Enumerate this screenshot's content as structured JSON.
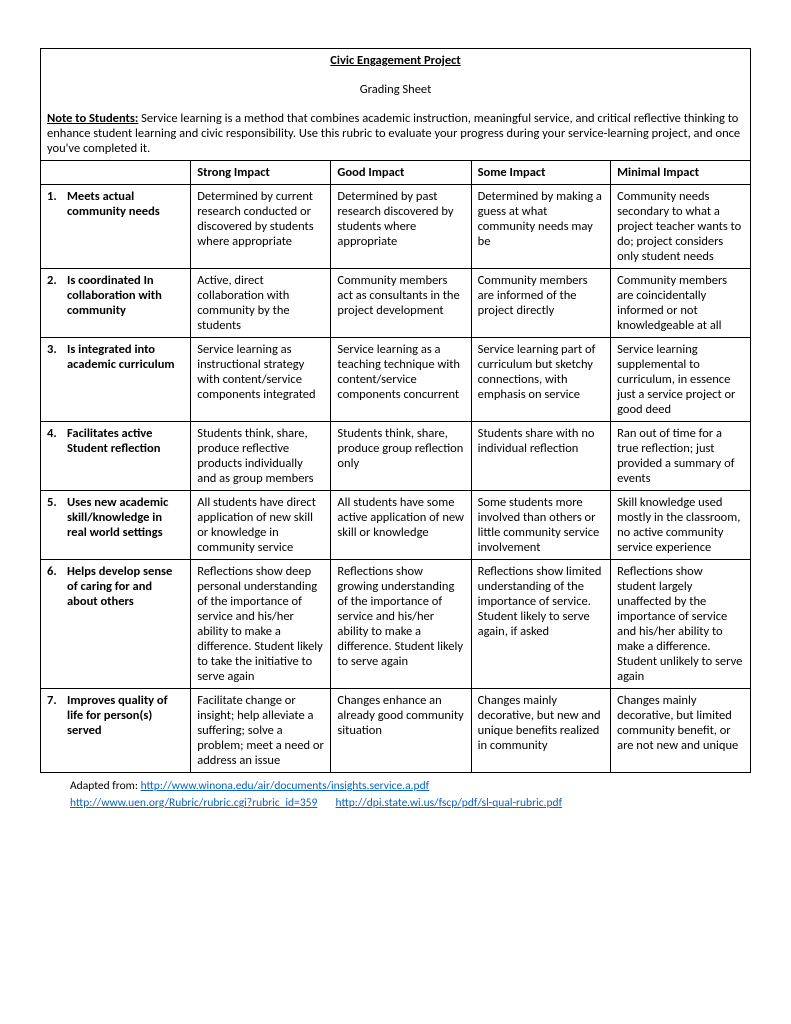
{
  "header": {
    "title": "Civic Engagement Project",
    "subtitle": "Grading Sheet",
    "note_label": "Note to Students:",
    "note_text": "  Service learning is a method that combines academic instruction, meaningful service, and critical reflective thinking to enhance student learning and civic responsibility.  Use this rubric to evaluate your progress during your service-learning project, and once you've completed it."
  },
  "columns": {
    "blank": "",
    "c1": "Strong Impact",
    "c2": "Good Impact",
    "c3": "Some Impact",
    "c4": "Minimal Impact"
  },
  "rows": [
    {
      "num": "1.",
      "crit": "Meets actual community needs",
      "c1": "Determined by current research conducted or discovered by students where appropriate",
      "c2": "Determined by past research discovered by students where appropriate",
      "c3": "Determined by making a guess at what community needs may be",
      "c4": "Community needs secondary to what a project teacher wants to do; project considers only student needs"
    },
    {
      "num": "2.",
      "crit": "Is coordinated In collaboration with community",
      "c1": "Active, direct collaboration with community by the students",
      "c2": "Community members act as consultants in the project development",
      "c3": "Community members are informed of the project directly",
      "c4": "Community members are coincidentally informed or not knowledgeable at all"
    },
    {
      "num": "3.",
      "crit": "Is integrated into academic curriculum",
      "c1": "Service learning as instructional strategy with content/service components integrated",
      "c2": "Service learning as a teaching technique with content/service components concurrent",
      "c3": "Service learning part of curriculum but sketchy connections, with emphasis on service",
      "c4": "Service learning supplemental to curriculum, in essence just a service project or good deed"
    },
    {
      "num": "4.",
      "crit": "Facilitates active Student reflection",
      "c1": "Students think, share, produce reflective products individually and as group members",
      "c2": "Students think, share, produce group reflection only",
      "c3": "Students share with no individual reflection",
      "c4": "Ran out of time for a true reflection; just provided a summary of events"
    },
    {
      "num": "5.",
      "crit": "Uses new academic skill/knowledge in real world settings",
      "c1": "All students have direct application of new skill or knowledge in community service",
      "c2": "All students have some active application of new skill or knowledge",
      "c3": "Some students more involved than others or little community service involvement",
      "c4": "Skill knowledge used mostly in the classroom, no active community service experience"
    },
    {
      "num": "6.",
      "crit": "Helps develop sense of caring for and about others",
      "c1": "Reflections show deep personal understanding of the importance of service and his/her ability to make a difference.  Student likely to take the initiative to serve again",
      "c2": "Reflections show growing understanding of the importance of service and his/her ability to make a difference.  Student likely to serve again",
      "c3": "Reflections show limited understanding of the importance of service.  Student likely to serve again, if asked",
      "c4": "Reflections show student largely unaffected by the importance of service and his/her ability to make a difference.  Student unlikely to serve again"
    },
    {
      "num": "7.",
      "crit": "Improves quality of life for person(s) served",
      "c1": "Facilitate change or insight; help alleviate a suffering; solve a problem; meet a need or address an issue",
      "c2": "Changes enhance an already good community situation",
      "c3": "Changes mainly decorative, but new and unique benefits realized in community",
      "c4": "Changes mainly decorative, but limited community benefit, or are not new and unique"
    }
  ],
  "footer": {
    "adapted_label": "Adapted from: ",
    "link1_text": "http://www.winona.edu/air/documents/insights.service.a.pdf",
    "link2_text": "http://www.uen.org/Rubric/rubric.cgi?rubric_id=359",
    "link3_text": "http://dpi.state.wi.us/fscp/pdf/sl-qual-rubric.pdf"
  }
}
